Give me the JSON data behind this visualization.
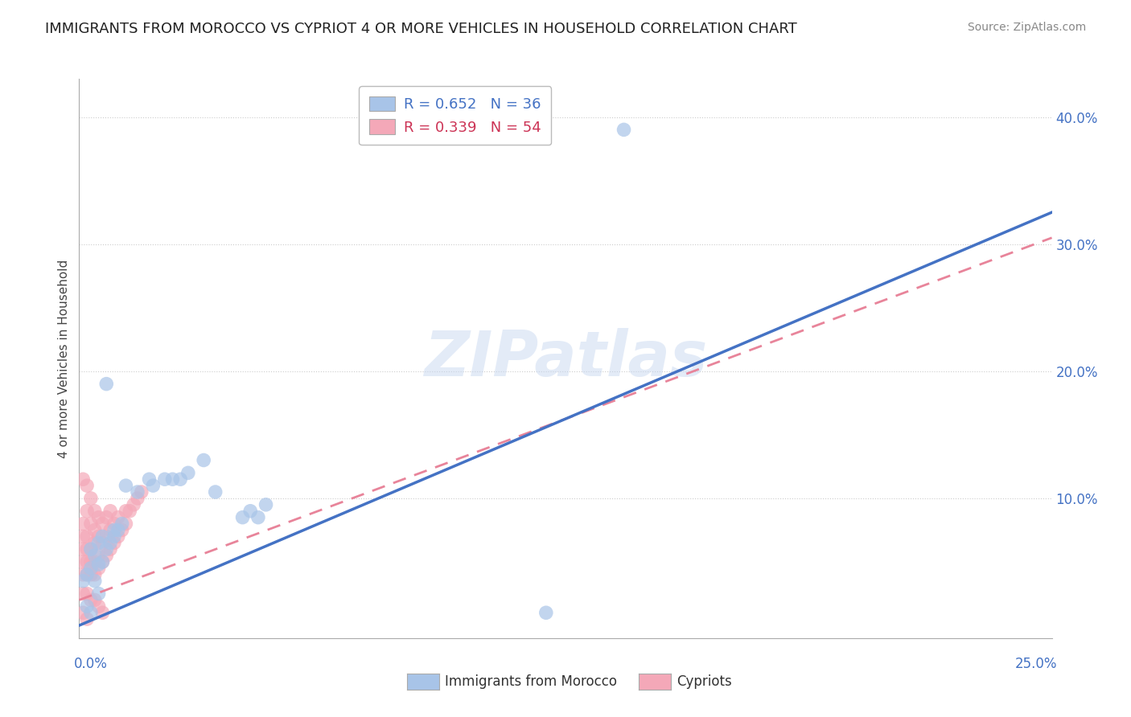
{
  "title": "IMMIGRANTS FROM MOROCCO VS CYPRIOT 4 OR MORE VEHICLES IN HOUSEHOLD CORRELATION CHART",
  "source": "Source: ZipAtlas.com",
  "ylabel_label": "4 or more Vehicles in Household",
  "x_lim": [
    0.0,
    0.25
  ],
  "y_lim": [
    -0.01,
    0.43
  ],
  "y_ticks": [
    0.0,
    0.1,
    0.2,
    0.3,
    0.4
  ],
  "y_tick_labels": [
    "",
    "10.0%",
    "20.0%",
    "30.0%",
    "40.0%"
  ],
  "legend_r1": "R = 0.652   N = 36",
  "legend_r2": "R = 0.339   N = 54",
  "blue_color": "#a8c4e8",
  "pink_color": "#f4a8b8",
  "blue_line_color": "#4472c4",
  "pink_line_color": "#e8849a",
  "watermark": "ZIPatlas",
  "blue_line_x": [
    0.0,
    0.25
  ],
  "blue_line_y": [
    0.0,
    0.325
  ],
  "pink_line_x": [
    0.0,
    0.25
  ],
  "pink_line_y": [
    0.02,
    0.305
  ],
  "blue_x": [
    0.001,
    0.002,
    0.003,
    0.003,
    0.004,
    0.004,
    0.005,
    0.005,
    0.006,
    0.006,
    0.007,
    0.008,
    0.009,
    0.009,
    0.01,
    0.011,
    0.012,
    0.015,
    0.018,
    0.019,
    0.022,
    0.024,
    0.026,
    0.028,
    0.032,
    0.035,
    0.042,
    0.044,
    0.046,
    0.048,
    0.002,
    0.003,
    0.005,
    0.007,
    0.14,
    0.12
  ],
  "blue_y": [
    0.035,
    0.04,
    0.045,
    0.06,
    0.035,
    0.055,
    0.048,
    0.065,
    0.05,
    0.07,
    0.06,
    0.065,
    0.07,
    0.075,
    0.075,
    0.08,
    0.11,
    0.105,
    0.115,
    0.11,
    0.115,
    0.115,
    0.115,
    0.12,
    0.13,
    0.105,
    0.085,
    0.09,
    0.085,
    0.095,
    0.015,
    0.01,
    0.025,
    0.19,
    0.39,
    0.01
  ],
  "pink_x": [
    0.001,
    0.001,
    0.001,
    0.001,
    0.001,
    0.002,
    0.002,
    0.002,
    0.002,
    0.002,
    0.003,
    0.003,
    0.003,
    0.003,
    0.003,
    0.004,
    0.004,
    0.004,
    0.004,
    0.004,
    0.005,
    0.005,
    0.005,
    0.005,
    0.006,
    0.006,
    0.006,
    0.007,
    0.007,
    0.007,
    0.008,
    0.008,
    0.008,
    0.009,
    0.009,
    0.01,
    0.01,
    0.011,
    0.012,
    0.012,
    0.013,
    0.014,
    0.015,
    0.016,
    0.001,
    0.002,
    0.003,
    0.004,
    0.005,
    0.006,
    0.001,
    0.002,
    0.001,
    0.002
  ],
  "pink_y": [
    0.04,
    0.05,
    0.06,
    0.07,
    0.08,
    0.04,
    0.05,
    0.06,
    0.07,
    0.09,
    0.04,
    0.05,
    0.06,
    0.08,
    0.1,
    0.04,
    0.05,
    0.065,
    0.075,
    0.09,
    0.045,
    0.055,
    0.07,
    0.085,
    0.05,
    0.065,
    0.08,
    0.055,
    0.07,
    0.085,
    0.06,
    0.075,
    0.09,
    0.065,
    0.08,
    0.07,
    0.085,
    0.075,
    0.08,
    0.09,
    0.09,
    0.095,
    0.1,
    0.105,
    0.025,
    0.025,
    0.02,
    0.02,
    0.015,
    0.01,
    0.01,
    0.005,
    0.115,
    0.11
  ]
}
